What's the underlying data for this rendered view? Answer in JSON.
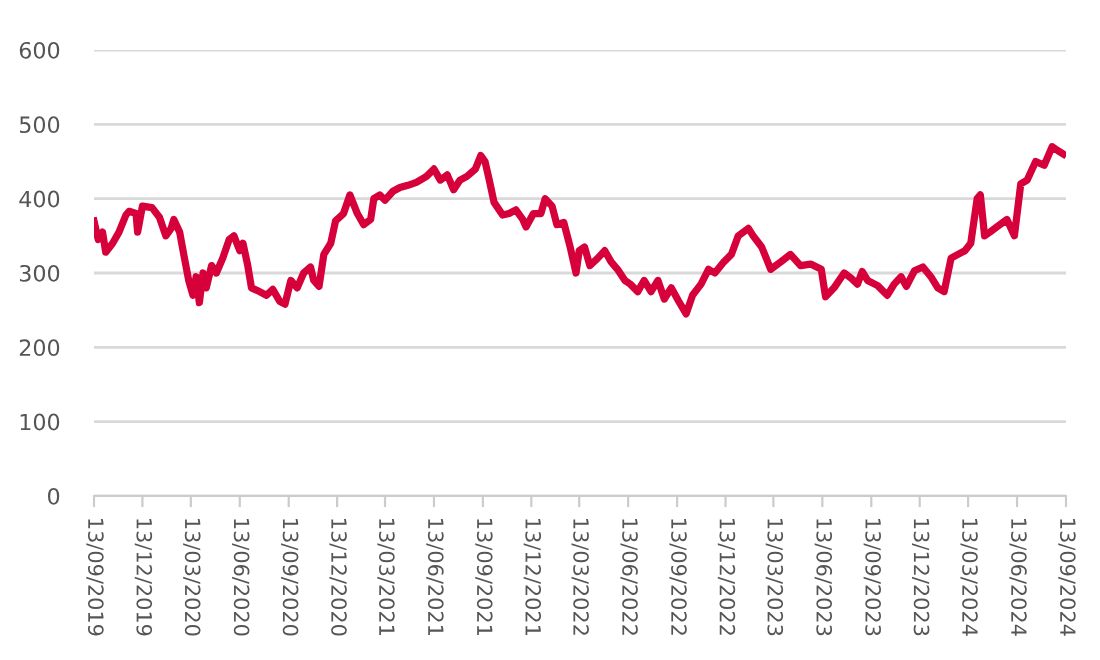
{
  "chart_data": {
    "type": "line",
    "x": [
      "2019-09-13",
      "2019-09-21",
      "2019-09-29",
      "2019-10-05",
      "2019-10-18",
      "2019-10-30",
      "2019-11-12",
      "2019-11-18",
      "2019-12-01",
      "2019-12-04",
      "2019-12-13",
      "2019-12-31",
      "2020-01-14",
      "2020-01-26",
      "2020-02-05",
      "2020-02-10",
      "2020-02-21",
      "2020-03-01",
      "2020-03-09",
      "2020-03-17",
      "2020-03-23",
      "2020-03-29",
      "2020-04-05",
      "2020-04-11",
      "2020-04-21",
      "2020-04-30",
      "2020-05-12",
      "2020-05-24",
      "2020-06-02",
      "2020-06-13",
      "2020-06-19",
      "2020-06-28",
      "2020-07-05",
      "2020-07-20",
      "2020-08-02",
      "2020-08-14",
      "2020-08-27",
      "2020-09-06",
      "2020-09-17",
      "2020-09-29",
      "2020-10-11",
      "2020-10-24",
      "2020-10-30",
      "2020-11-09",
      "2020-11-18",
      "2020-12-01",
      "2020-12-10",
      "2020-12-25",
      "2021-01-06",
      "2021-01-20",
      "2021-02-01",
      "2021-02-14",
      "2021-02-20",
      "2021-03-03",
      "2021-03-13",
      "2021-03-28",
      "2021-04-10",
      "2021-04-25",
      "2021-05-11",
      "2021-05-30",
      "2021-06-13",
      "2021-06-25",
      "2021-07-08",
      "2021-07-20",
      "2021-08-01",
      "2021-08-14",
      "2021-08-30",
      "2021-09-09",
      "2021-09-17",
      "2021-09-25",
      "2021-10-04",
      "2021-10-20",
      "2021-11-01",
      "2021-11-14",
      "2021-11-27",
      "2021-12-03",
      "2021-12-17",
      "2021-12-31",
      "2022-01-08",
      "2022-01-21",
      "2022-01-30",
      "2022-02-12",
      "2022-02-24",
      "2022-03-07",
      "2022-03-13",
      "2022-03-23",
      "2022-04-02",
      "2022-04-17",
      "2022-04-30",
      "2022-05-12",
      "2022-05-24",
      "2022-06-07",
      "2022-06-17",
      "2022-07-01",
      "2022-07-13",
      "2022-07-26",
      "2022-08-08",
      "2022-08-20",
      "2022-09-02",
      "2022-09-16",
      "2022-09-30",
      "2022-10-12",
      "2022-10-28",
      "2022-11-11",
      "2022-11-23",
      "2022-12-10",
      "2022-12-24",
      "2023-01-06",
      "2023-01-25",
      "2023-02-03",
      "2023-02-19",
      "2023-03-08",
      "2023-03-27",
      "2023-04-14",
      "2023-05-03",
      "2023-05-22",
      "2023-06-11",
      "2023-06-19",
      "2023-07-05",
      "2023-07-24",
      "2023-08-06",
      "2023-08-18",
      "2023-08-27",
      "2023-09-06",
      "2023-09-25",
      "2023-10-13",
      "2023-10-26",
      "2023-11-08",
      "2023-11-18",
      "2023-12-03",
      "2023-12-19",
      "2024-01-03",
      "2024-01-16",
      "2024-01-28",
      "2024-02-10",
      "2024-02-23",
      "2024-03-07",
      "2024-03-18",
      "2024-03-30",
      "2024-04-05",
      "2024-04-13",
      "2024-04-23",
      "2024-05-06",
      "2024-05-25",
      "2024-06-08",
      "2024-06-20",
      "2024-07-02",
      "2024-07-18",
      "2024-08-03",
      "2024-08-18",
      "2024-08-28",
      "2024-09-08"
    ],
    "series": [
      {
        "color": "#d6003a",
        "values": [
          370,
          345,
          355,
          328,
          340,
          355,
          378,
          383,
          380,
          355,
          390,
          388,
          375,
          350,
          360,
          372,
          355,
          320,
          290,
          270,
          295,
          260,
          300,
          280,
          310,
          300,
          320,
          345,
          350,
          330,
          340,
          310,
          280,
          275,
          270,
          278,
          262,
          258,
          290,
          280,
          300,
          308,
          290,
          282,
          325,
          340,
          370,
          380,
          405,
          380,
          365,
          372,
          400,
          405,
          398,
          410,
          415,
          418,
          422,
          430,
          440,
          425,
          432,
          412,
          425,
          430,
          440,
          458,
          450,
          425,
          395,
          378,
          380,
          385,
          372,
          362,
          380,
          380,
          400,
          390,
          365,
          368,
          335,
          300,
          330,
          335,
          310,
          320,
          330,
          315,
          305,
          290,
          285,
          275,
          290,
          275,
          290,
          265,
          280,
          262,
          245,
          270,
          285,
          305,
          300,
          315,
          325,
          350,
          360,
          350,
          335,
          305,
          315,
          325,
          310,
          312,
          305,
          268,
          280,
          300,
          293,
          285,
          302,
          290,
          283,
          270,
          285,
          295,
          282,
          303,
          308,
          295,
          280,
          275,
          320,
          325,
          330,
          340,
          400,
          405,
          350,
          355,
          362,
          372,
          350,
          420,
          425,
          450,
          445,
          470,
          465,
          460
        ]
      }
    ],
    "xlim": [
      "2019-09-13",
      "2024-09-13"
    ],
    "xticks": [
      {
        "value": "2019-09-13",
        "label": "13/09/2019"
      },
      {
        "value": "2019-12-13",
        "label": "13/12/2019"
      },
      {
        "value": "2020-03-13",
        "label": "13/03/2020"
      },
      {
        "value": "2020-06-13",
        "label": "13/06/2020"
      },
      {
        "value": "2020-09-13",
        "label": "13/09/2020"
      },
      {
        "value": "2020-12-13",
        "label": "13/12/2020"
      },
      {
        "value": "2021-03-13",
        "label": "13/03/2021"
      },
      {
        "value": "2021-06-13",
        "label": "13/06/2021"
      },
      {
        "value": "2021-09-13",
        "label": "13/09/2021"
      },
      {
        "value": "2021-12-13",
        "label": "13/12/2021"
      },
      {
        "value": "2022-03-13",
        "label": "13/03/2022"
      },
      {
        "value": "2022-06-13",
        "label": "13/06/2022"
      },
      {
        "value": "2022-09-13",
        "label": "13/09/2022"
      },
      {
        "value": "2022-12-13",
        "label": "13/12/2022"
      },
      {
        "value": "2023-03-13",
        "label": "13/03/2023"
      },
      {
        "value": "2023-06-13",
        "label": "13/06/2023"
      },
      {
        "value": "2023-09-13",
        "label": "13/09/2023"
      },
      {
        "value": "2023-12-13",
        "label": "13/12/2023"
      },
      {
        "value": "2024-03-13",
        "label": "13/03/2024"
      },
      {
        "value": "2024-06-13",
        "label": "13/06/2024"
      },
      {
        "value": "2024-09-13",
        "label": "13/09/2024"
      }
    ],
    "ylim": [
      0,
      600
    ],
    "yticks": [
      0,
      100,
      200,
      300,
      400,
      500,
      600
    ],
    "grid": "y",
    "marker": "none",
    "line_style": "solid"
  }
}
